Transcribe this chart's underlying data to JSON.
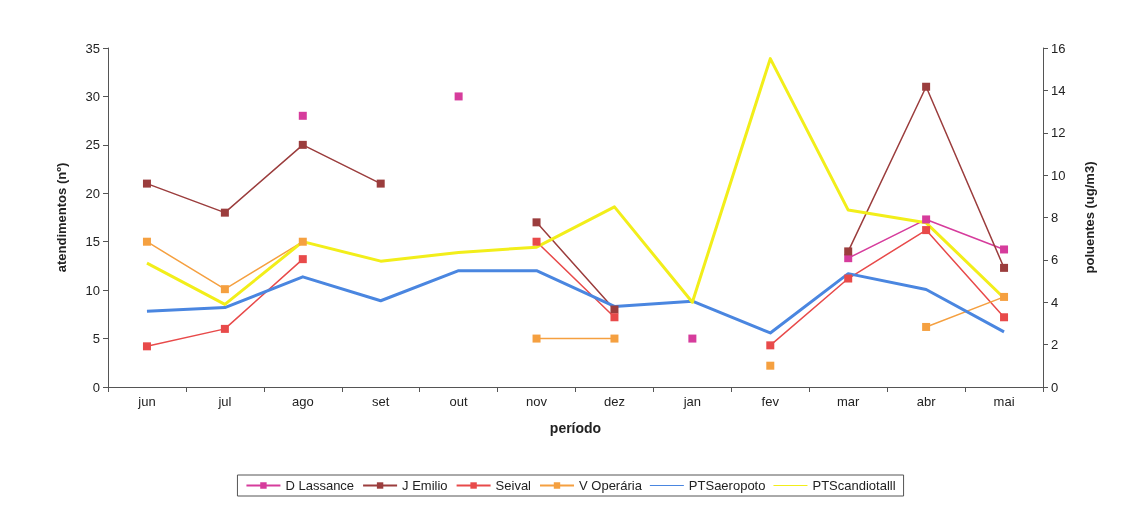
{
  "chart_data": {
    "type": "line",
    "xlabel": "período",
    "ylabel": "atendimentos (nº)",
    "y2label": "poluentes (ug/m3)",
    "categories": [
      "jun",
      "jul",
      "ago",
      "set",
      "out",
      "nov",
      "dez",
      "jan",
      "fev",
      "mar",
      "abr",
      "mai"
    ],
    "ylim": [
      0,
      35
    ],
    "yticks": [
      0,
      5,
      10,
      15,
      20,
      25,
      30,
      35
    ],
    "y2lim": [
      0,
      16
    ],
    "y2ticks": [
      0,
      2,
      4,
      6,
      8,
      10,
      12,
      14,
      16
    ],
    "grid": false,
    "legend": "bottom",
    "series": [
      {
        "name": "D Lassance",
        "color": "#d63c9c",
        "marker": "square",
        "values": [
          null,
          null,
          28,
          null,
          30,
          null,
          null,
          5,
          null,
          13.3,
          17.3,
          14.2
        ]
      },
      {
        "name": "J Emilio",
        "color": "#9b3d3d",
        "marker": "square",
        "values": [
          21,
          18,
          25,
          21,
          null,
          17,
          8,
          null,
          null,
          14,
          31,
          12.3
        ]
      },
      {
        "name": "Seival",
        "color": "#e84a4a",
        "marker": "square",
        "values": [
          4.2,
          6,
          13.2,
          null,
          null,
          15,
          7.2,
          null,
          4.3,
          11.2,
          16.2,
          7.2
        ]
      },
      {
        "name": "V Operária",
        "color": "#f5a040",
        "marker": "square",
        "values": [
          15,
          10.1,
          15,
          null,
          null,
          5,
          5,
          null,
          2.2,
          null,
          6.2,
          9.3
        ]
      },
      {
        "name": "PTSaeropoto",
        "color": "#4a86e0",
        "marker": "none",
        "axis": "y2",
        "values": [
          3.57,
          3.75,
          5.2,
          4.07,
          5.49,
          5.49,
          3.8,
          4.05,
          2.55,
          5.35,
          4.6,
          2.6
        ]
      },
      {
        "name": "PTScandiotalll",
        "color": "#f2ee1a",
        "marker": "none",
        "axis": "y2",
        "values": [
          5.85,
          3.9,
          6.86,
          5.94,
          6.35,
          6.6,
          8.5,
          4.0,
          15.5,
          8.35,
          7.75,
          4.2
        ]
      }
    ]
  }
}
